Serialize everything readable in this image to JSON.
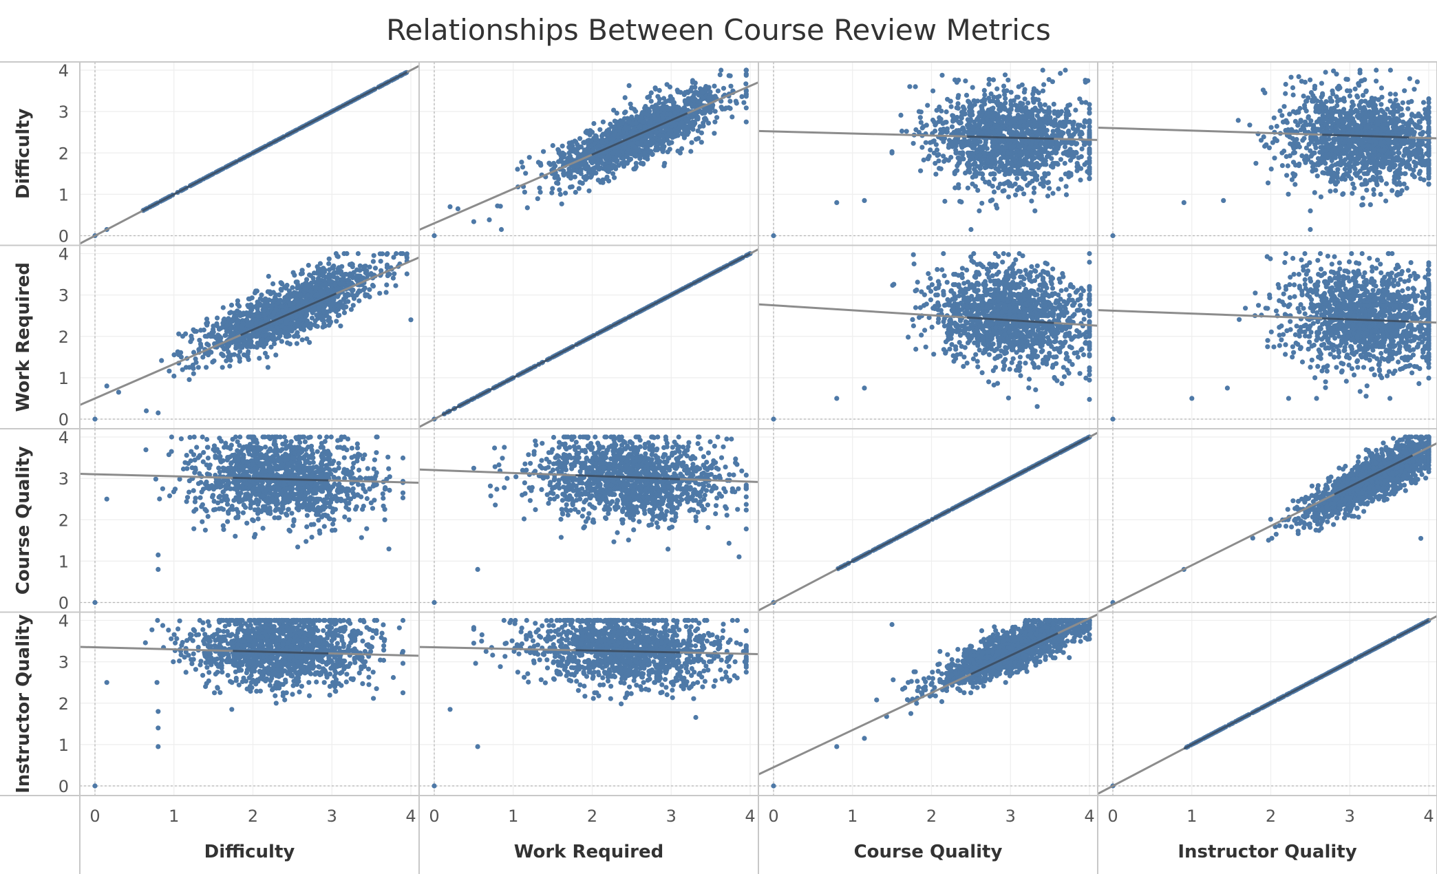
{
  "chart_data": {
    "type": "scatter",
    "layout": "scatter-matrix",
    "title": "Relationships Between Course Review Metrics",
    "variables": [
      "Difficulty",
      "Work Required",
      "Course Quality",
      "Instructor Quality"
    ],
    "axis_range": [
      0,
      4
    ],
    "ticks": [
      0,
      1,
      2,
      3,
      4
    ],
    "grid": true,
    "reference_line_at_zero": true,
    "colors": {
      "point": "#4e79a7",
      "trend_line": "#8c8c8c",
      "trend_line_dense": "#2f4763",
      "grid": "#eeeeee",
      "border": "#c8c8c8"
    },
    "point_distributions": [
      {
        "row": "Difficulty",
        "col": "Difficulty",
        "shape": "identity",
        "min": 0.6,
        "max": 3.95
      },
      {
        "row": "Difficulty",
        "col": "Work Required",
        "shape": "cloud",
        "mean_x": 2.6,
        "mean_y": 2.45,
        "sd_x": 0.55,
        "sd_y": 0.55,
        "r": 0.8,
        "x_range": [
          0.5,
          3.95
        ],
        "y_range": [
          0.2,
          4.0
        ]
      },
      {
        "row": "Difficulty",
        "col": "Course Quality",
        "shape": "cloud",
        "mean_x": 3.0,
        "mean_y": 2.35,
        "sd_x": 0.5,
        "sd_y": 0.55,
        "r": -0.1,
        "x_range": [
          1.5,
          4.0
        ],
        "y_range": [
          0.6,
          4.0
        ]
      },
      {
        "row": "Difficulty",
        "col": "Instructor Quality",
        "shape": "cloud",
        "mean_x": 3.2,
        "mean_y": 2.35,
        "sd_x": 0.5,
        "sd_y": 0.55,
        "r": -0.1,
        "x_range": [
          1.5,
          4.0
        ],
        "y_range": [
          0.6,
          4.0
        ]
      },
      {
        "row": "Work Required",
        "col": "Difficulty",
        "shape": "cloud",
        "mean_x": 2.45,
        "mean_y": 2.6,
        "sd_x": 0.55,
        "sd_y": 0.55,
        "r": 0.8,
        "x_range": [
          0.6,
          3.95
        ],
        "y_range": [
          0.2,
          4.0
        ]
      },
      {
        "row": "Work Required",
        "col": "Work Required",
        "shape": "identity",
        "min": 0.1,
        "max": 4.0
      },
      {
        "row": "Work Required",
        "col": "Course Quality",
        "shape": "cloud",
        "mean_x": 3.0,
        "mean_y": 2.45,
        "sd_x": 0.5,
        "sd_y": 0.6,
        "r": -0.15,
        "x_range": [
          1.5,
          4.0
        ],
        "y_range": [
          0.0,
          4.0
        ]
      },
      {
        "row": "Work Required",
        "col": "Instructor Quality",
        "shape": "cloud",
        "mean_x": 3.2,
        "mean_y": 2.45,
        "sd_x": 0.5,
        "sd_y": 0.6,
        "r": -0.1,
        "x_range": [
          1.6,
          4.0
        ],
        "y_range": [
          0.0,
          4.0
        ]
      },
      {
        "row": "Course Quality",
        "col": "Difficulty",
        "shape": "cloud",
        "mean_x": 2.35,
        "mean_y": 3.0,
        "sd_x": 0.55,
        "sd_y": 0.5,
        "r": -0.1,
        "x_range": [
          0.6,
          3.9
        ],
        "y_range": [
          1.1,
          4.0
        ]
      },
      {
        "row": "Course Quality",
        "col": "Work Required",
        "shape": "cloud",
        "mean_x": 2.45,
        "mean_y": 3.0,
        "sd_x": 0.6,
        "sd_y": 0.5,
        "r": -0.15,
        "x_range": [
          0.5,
          3.95
        ],
        "y_range": [
          1.1,
          4.0
        ]
      },
      {
        "row": "Course Quality",
        "col": "Course Quality",
        "shape": "identity",
        "min": 0.8,
        "max": 4.0
      },
      {
        "row": "Course Quality",
        "col": "Instructor Quality",
        "shape": "cloud",
        "mean_x": 3.3,
        "mean_y": 3.0,
        "sd_x": 0.45,
        "sd_y": 0.5,
        "r": 0.85,
        "x_range": [
          1.6,
          4.0
        ],
        "y_range": [
          1.4,
          4.0
        ]
      },
      {
        "row": "Instructor Quality",
        "col": "Difficulty",
        "shape": "cloud",
        "mean_x": 2.35,
        "mean_y": 3.3,
        "sd_x": 0.55,
        "sd_y": 0.45,
        "r": -0.1,
        "x_range": [
          0.6,
          3.9
        ],
        "y_range": [
          1.1,
          4.0
        ]
      },
      {
        "row": "Instructor Quality",
        "col": "Work Required",
        "shape": "cloud",
        "mean_x": 2.45,
        "mean_y": 3.3,
        "sd_x": 0.6,
        "sd_y": 0.45,
        "r": -0.1,
        "x_range": [
          0.5,
          3.95
        ],
        "y_range": [
          1.1,
          4.0
        ]
      },
      {
        "row": "Instructor Quality",
        "col": "Course Quality",
        "shape": "cloud",
        "mean_x": 3.05,
        "mean_y": 3.3,
        "sd_x": 0.5,
        "sd_y": 0.45,
        "r": 0.85,
        "x_range": [
          1.1,
          4.0
        ],
        "y_range": [
          1.1,
          4.0
        ]
      },
      {
        "row": "Instructor Quality",
        "col": "Instructor Quality",
        "shape": "identity",
        "min": 0.9,
        "max": 4.0
      }
    ],
    "outliers": [
      {
        "row": "Difficulty",
        "col": "Difficulty",
        "points": [
          [
            0,
            0
          ],
          [
            0.15,
            0.15
          ]
        ]
      },
      {
        "row": "Difficulty",
        "col": "Work Required",
        "points": [
          [
            0,
            0
          ],
          [
            0.2,
            0.7
          ],
          [
            0.3,
            0.65
          ],
          [
            0.85,
            0.15
          ]
        ]
      },
      {
        "row": "Difficulty",
        "col": "Course Quality",
        "points": [
          [
            0,
            0
          ],
          [
            0.8,
            0.8
          ],
          [
            1.15,
            0.85
          ],
          [
            2.5,
            0.15
          ]
        ]
      },
      {
        "row": "Difficulty",
        "col": "Instructor Quality",
        "points": [
          [
            0,
            0
          ],
          [
            0.9,
            0.8
          ],
          [
            1.4,
            0.85
          ],
          [
            2.5,
            0.15
          ]
        ]
      },
      {
        "row": "Work Required",
        "col": "Difficulty",
        "points": [
          [
            0,
            0
          ],
          [
            0.15,
            0.8
          ],
          [
            0.3,
            0.65
          ],
          [
            0.65,
            0.2
          ],
          [
            0.8,
            0.15
          ],
          [
            4.0,
            2.4
          ]
        ]
      },
      {
        "row": "Work Required",
        "col": "Work Required",
        "points": [
          [
            0,
            0
          ]
        ]
      },
      {
        "row": "Work Required",
        "col": "Course Quality",
        "points": [
          [
            0,
            0
          ],
          [
            0.8,
            0.5
          ],
          [
            1.15,
            0.75
          ]
        ]
      },
      {
        "row": "Work Required",
        "col": "Instructor Quality",
        "points": [
          [
            0,
            0
          ],
          [
            1.0,
            0.5
          ],
          [
            1.45,
            0.75
          ]
        ]
      },
      {
        "row": "Course Quality",
        "col": "Difficulty",
        "points": [
          [
            0,
            0
          ],
          [
            0.15,
            2.5
          ],
          [
            0.8,
            1.15
          ],
          [
            0.8,
            0.8
          ]
        ]
      },
      {
        "row": "Course Quality",
        "col": "Work Required",
        "points": [
          [
            0,
            0
          ],
          [
            0.55,
            0.8
          ]
        ]
      },
      {
        "row": "Course Quality",
        "col": "Course Quality",
        "points": [
          [
            0,
            0
          ]
        ]
      },
      {
        "row": "Course Quality",
        "col": "Instructor Quality",
        "points": [
          [
            0,
            0
          ],
          [
            0.9,
            0.8
          ],
          [
            3.9,
            1.55
          ]
        ]
      },
      {
        "row": "Instructor Quality",
        "col": "Difficulty",
        "points": [
          [
            0,
            0
          ],
          [
            0.15,
            2.5
          ],
          [
            0.8,
            1.8
          ],
          [
            0.8,
            1.4
          ],
          [
            0.8,
            0.95
          ]
        ]
      },
      {
        "row": "Instructor Quality",
        "col": "Work Required",
        "points": [
          [
            0,
            0
          ],
          [
            0.2,
            1.85
          ],
          [
            0.55,
            0.95
          ]
        ]
      },
      {
        "row": "Instructor Quality",
        "col": "Course Quality",
        "points": [
          [
            0,
            0
          ],
          [
            0.8,
            0.95
          ],
          [
            1.15,
            1.15
          ],
          [
            1.5,
            3.9
          ]
        ]
      },
      {
        "row": "Instructor Quality",
        "col": "Instructor Quality",
        "points": [
          [
            0,
            0
          ]
        ]
      }
    ],
    "trend_lines": [
      {
        "row": "Difficulty",
        "col": "Difficulty",
        "intercept": 0.0,
        "slope": 1.0
      },
      {
        "row": "Difficulty",
        "col": "Work Required",
        "intercept": 0.3,
        "slope": 0.83
      },
      {
        "row": "Difficulty",
        "col": "Course Quality",
        "intercept": 2.52,
        "slope": -0.05
      },
      {
        "row": "Difficulty",
        "col": "Instructor Quality",
        "intercept": 2.6,
        "slope": -0.06
      },
      {
        "row": "Work Required",
        "col": "Difficulty",
        "intercept": 0.5,
        "slope": 0.83
      },
      {
        "row": "Work Required",
        "col": "Work Required",
        "intercept": 0.0,
        "slope": 1.0
      },
      {
        "row": "Work Required",
        "col": "Course Quality",
        "intercept": 2.75,
        "slope": -0.12
      },
      {
        "row": "Work Required",
        "col": "Instructor Quality",
        "intercept": 2.62,
        "slope": -0.07
      },
      {
        "row": "Course Quality",
        "col": "Difficulty",
        "intercept": 3.1,
        "slope": -0.05
      },
      {
        "row": "Course Quality",
        "col": "Work Required",
        "intercept": 3.2,
        "slope": -0.07
      },
      {
        "row": "Course Quality",
        "col": "Course Quality",
        "intercept": 0.0,
        "slope": 1.0
      },
      {
        "row": "Course Quality",
        "col": "Instructor Quality",
        "intercept": -0.05,
        "slope": 0.95
      },
      {
        "row": "Instructor Quality",
        "col": "Difficulty",
        "intercept": 3.35,
        "slope": -0.05
      },
      {
        "row": "Instructor Quality",
        "col": "Work Required",
        "intercept": 3.35,
        "slope": -0.04
      },
      {
        "row": "Instructor Quality",
        "col": "Course Quality",
        "intercept": 0.45,
        "slope": 0.9
      },
      {
        "row": "Instructor Quality",
        "col": "Instructor Quality",
        "intercept": 0.0,
        "slope": 1.0
      }
    ]
  }
}
